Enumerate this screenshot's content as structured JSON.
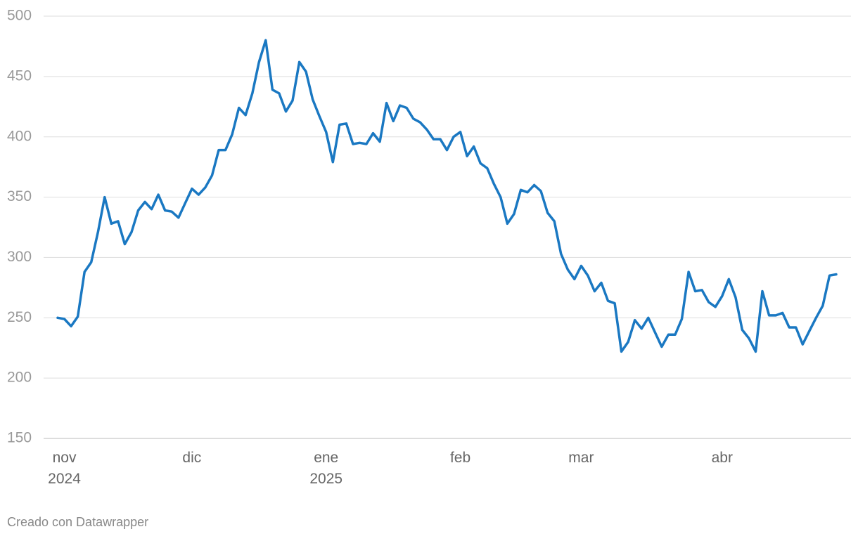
{
  "chart_data": {
    "type": "line",
    "categories": [
      null,
      "nov\n2024",
      null,
      null,
      null,
      null,
      null,
      null,
      null,
      null,
      null,
      null,
      null,
      null,
      null,
      null,
      null,
      null,
      null,
      null,
      "dic",
      null,
      null,
      null,
      null,
      null,
      null,
      null,
      null,
      null,
      null,
      null,
      null,
      null,
      null,
      null,
      null,
      null,
      null,
      null,
      "ene\n2025",
      null,
      null,
      null,
      null,
      null,
      null,
      null,
      null,
      null,
      null,
      null,
      null,
      null,
      null,
      null,
      null,
      null,
      null,
      null,
      "feb",
      null,
      null,
      null,
      null,
      null,
      null,
      null,
      null,
      null,
      null,
      null,
      null,
      null,
      null,
      null,
      null,
      null,
      "mar",
      null,
      null,
      null,
      null,
      null,
      null,
      null,
      null,
      null,
      null,
      null,
      null,
      null,
      null,
      null,
      null,
      null,
      null,
      null,
      null,
      "abr",
      null,
      null,
      null,
      null,
      null,
      null,
      null,
      null,
      null,
      null,
      null,
      null,
      null,
      null,
      null,
      null,
      null
    ],
    "values": [
      250,
      249,
      243,
      251,
      288,
      296,
      321,
      350,
      328,
      330,
      311,
      321,
      339,
      346,
      340,
      352,
      339,
      338,
      333,
      345,
      357,
      352,
      358,
      368,
      389,
      389,
      402,
      424,
      418,
      436,
      462,
      480,
      439,
      436,
      421,
      430,
      462,
      454,
      431,
      417,
      404,
      379,
      410,
      411,
      394,
      395,
      394,
      403,
      396,
      428,
      413,
      426,
      424,
      415,
      412,
      406,
      398,
      398,
      389,
      400,
      404,
      384,
      392,
      378,
      374,
      361,
      350,
      328,
      336,
      356,
      354,
      360,
      355,
      337,
      330,
      303,
      290,
      282,
      293,
      285,
      272,
      279,
      264,
      262,
      222,
      230,
      248,
      241,
      250,
      238,
      226,
      236,
      236,
      249,
      288,
      272,
      273,
      263,
      259,
      268,
      282,
      267,
      240,
      233,
      222,
      272,
      252,
      252,
      254,
      242,
      242,
      228,
      239,
      250,
      260,
      285,
      286
    ],
    "color": "#1a78c2",
    "ylim": [
      150,
      500
    ],
    "yticks": [
      150,
      200,
      250,
      300,
      350,
      400,
      450,
      500
    ],
    "grid": true,
    "footer": "Creado con Datawrapper"
  }
}
